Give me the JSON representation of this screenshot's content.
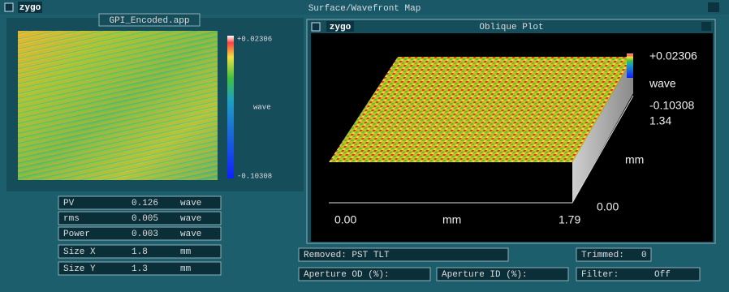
{
  "window": {
    "logo": "zygo",
    "title": "Surface/Wavefront Map"
  },
  "map_panel": {
    "title": "GPI_Encoded.app",
    "colorbar_max": "+0.02306",
    "colorbar_unit": "wave",
    "colorbar_min": "-0.10308"
  },
  "oblique_panel": {
    "logo": "zygo",
    "title": "Oblique Plot",
    "z_max": "+0.02306",
    "z_unit": "wave",
    "z_min": "-0.10308",
    "y_max": "1.34",
    "y_unit": "mm",
    "y_min": "0.00",
    "x_min": "0.00",
    "x_unit": "mm",
    "x_max": "1.79"
  },
  "results": {
    "rows": [
      [
        "PV",
        "0.126",
        "wave"
      ],
      [
        "rms",
        "0.005",
        "wave"
      ],
      [
        "Power",
        "0.003",
        "wave"
      ],
      [
        "Size X",
        "1.8",
        "mm"
      ],
      [
        "Size Y",
        "1.3",
        "mm"
      ]
    ]
  },
  "settings": {
    "removed": "Removed: PST TLT",
    "trimmed_label": "Trimmed:",
    "trimmed_value": "0",
    "aperture_od": "Aperture OD (%):",
    "aperture_id": "Aperture ID (%):",
    "filter_label": "Filter:",
    "filter_value": "Off"
  }
}
